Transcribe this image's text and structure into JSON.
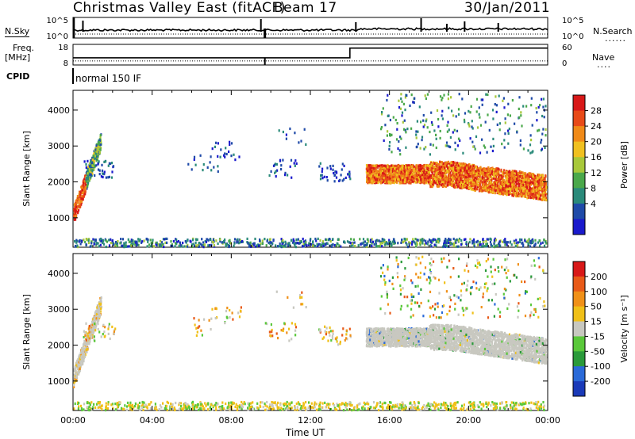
{
  "header": {
    "station": "Christmas Valley East (fitACF)",
    "beam": "Beam 17",
    "date": "30/Jan/2011"
  },
  "left_labels": {
    "nsky": "N.Sky",
    "freq": "Freq.",
    "freq_unit": "[MHz]",
    "cpid": "CPID"
  },
  "right_labels": {
    "nsearch": "N.Search",
    "nave": "Nave"
  },
  "cpid_text": "normal 150 IF",
  "x_axis": {
    "label": "Time UT",
    "ticks": [
      "00:00",
      "04:00",
      "08:00",
      "12:00",
      "16:00",
      "20:00",
      "00:00"
    ]
  },
  "chart_data": [
    {
      "type": "line",
      "panel": "noise",
      "ylabel_left": "N.Sky",
      "ylabel_right": "N.Search",
      "left_ticks": [
        "10^5",
        "10^0"
      ],
      "right_ticks": [
        "10^5",
        "10^0"
      ],
      "xlim": [
        0,
        24
      ]
    },
    {
      "type": "line",
      "panel": "frequency",
      "ylabel_left": "Freq. [MHz]",
      "ylabel_right": "Nave",
      "left_ticks": [
        "18",
        "8"
      ],
      "right_ticks": [
        "60",
        "0"
      ],
      "freq_step": {
        "x": 14.0,
        "before_level": 0.35,
        "after_level": 0.82
      },
      "xlim": [
        0,
        24
      ]
    },
    {
      "type": "heatmap",
      "panel": "power",
      "ylabel": "Slant Range [km]",
      "y_ticks": [
        1000,
        2000,
        3000,
        4000
      ],
      "ylim": [
        180,
        4550
      ],
      "xlim": [
        0,
        24
      ],
      "colorbar_label": "Power [dB]",
      "colorbar_ticks": [
        "28",
        "24",
        "20",
        "16",
        "12",
        "8",
        "4"
      ],
      "colors": [
        "#1a1acc",
        "#1f4aa8",
        "#2a8a7a",
        "#4aa84a",
        "#a8c83a",
        "#f0c020",
        "#f08a18",
        "#e84a18",
        "#d81818"
      ]
    },
    {
      "type": "heatmap",
      "panel": "velocity",
      "ylabel": "Slant Range [km]",
      "y_ticks": [
        1000,
        2000,
        3000,
        4000
      ],
      "ylim": [
        180,
        4550
      ],
      "xlim": [
        0,
        24
      ],
      "colorbar_label": "Velocity [m s⁻¹]",
      "colorbar_ticks": [
        "200",
        "100",
        "50",
        "15",
        "-15",
        "-50",
        "-100",
        "-200"
      ],
      "colors": [
        "#1a3ab8",
        "#2a6ad8",
        "#2a9a3a",
        "#5ac83a",
        "#c8c8c0",
        "#f0c018",
        "#f09018",
        "#e85a18",
        "#d81818"
      ]
    }
  ]
}
